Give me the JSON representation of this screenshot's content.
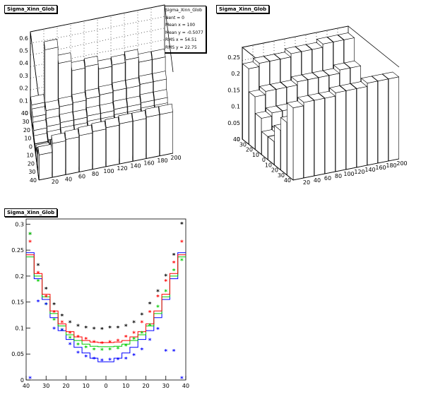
{
  "panels": {
    "top_left": {
      "title": "Sigma_Xinn_Glob"
    },
    "top_right": {
      "title": "Sigma_Xinn_Glob"
    },
    "bottom": {
      "title": "Sigma_Xinn_Glob"
    }
  },
  "stats": {
    "title": "Sigma_Xinn_Glob",
    "lines": [
      "Nent = 0",
      "Mean x =   100",
      "Mean y = -0.5077",
      "RMS x = 54.51",
      "RMS y = 22.75"
    ]
  },
  "chart_data": [
    {
      "type": "lego3d",
      "title": "Sigma_Xinn_Glob",
      "x_ticks": [
        "20",
        "40",
        "60",
        "80",
        "100",
        "120",
        "140",
        "160",
        "180",
        "200"
      ],
      "y_ticks": [
        "40",
        "30",
        "20",
        "10",
        "0",
        "10",
        "20",
        "30",
        "40"
      ],
      "z_ticks": [
        "0",
        "0.1",
        "0.2",
        "0.3",
        "0.4",
        "0.5",
        "0.6"
      ],
      "zlim": [
        0,
        0.65
      ],
      "x_bins": [
        10,
        30,
        50,
        70,
        90,
        110,
        130,
        150,
        170,
        190
      ],
      "y_bins": [
        -35,
        -25,
        -15,
        -5,
        5,
        15,
        25,
        35
      ],
      "values": [
        [
          0.2,
          0.13,
          0.08,
          0.02,
          0.02,
          0.06,
          0.1,
          0.13
        ],
        [
          0.27,
          0.17,
          0.09,
          0.03,
          0.03,
          0.07,
          0.13,
          0.55
        ],
        [
          0.28,
          0.18,
          0.1,
          0.04,
          0.04,
          0.08,
          0.14,
          0.42
        ],
        [
          0.29,
          0.19,
          0.11,
          0.04,
          0.04,
          0.08,
          0.15,
          0.34
        ],
        [
          0.3,
          0.2,
          0.11,
          0.05,
          0.05,
          0.09,
          0.16,
          0.35
        ],
        [
          0.31,
          0.21,
          0.12,
          0.05,
          0.05,
          0.09,
          0.17,
          0.31
        ],
        [
          0.32,
          0.22,
          0.12,
          0.06,
          0.06,
          0.1,
          0.18,
          0.32
        ],
        [
          0.32,
          0.22,
          0.13,
          0.06,
          0.06,
          0.1,
          0.18,
          0.34
        ],
        [
          0.33,
          0.23,
          0.13,
          0.07,
          0.07,
          0.11,
          0.19,
          0.3
        ],
        [
          0.33,
          0.23,
          0.14,
          0.07,
          0.07,
          0.11,
          0.19,
          0.3
        ]
      ]
    },
    {
      "type": "lego3d",
      "title": "Sigma_Xinn_Glob",
      "x_ticks": [
        "20",
        "40",
        "60",
        "80",
        "100",
        "120",
        "140",
        "160",
        "180",
        "200"
      ],
      "y_ticks": [
        "40",
        "30",
        "20",
        "10",
        "0",
        "10",
        "20",
        "30",
        "40"
      ],
      "z_ticks": [
        "0",
        "0.05",
        "0.1",
        "0.15",
        "0.2",
        "0.25"
      ],
      "zlim": [
        0,
        0.28
      ],
      "x_bins": [
        10,
        30,
        50,
        70,
        90,
        110,
        130,
        150,
        170,
        190
      ],
      "y_bins": [
        -35,
        -25,
        -15,
        -5,
        5,
        15,
        25,
        35
      ],
      "values": [
        [
          0.22,
          0.16,
          0.12,
          0.07,
          0.07,
          0.11,
          0.16,
          0.23
        ],
        [
          0.23,
          0.17,
          0.12,
          0.08,
          0.08,
          0.12,
          0.17,
          0.24
        ],
        [
          0.23,
          0.17,
          0.12,
          0.08,
          0.08,
          0.12,
          0.17,
          0.24
        ],
        [
          0.23,
          0.17,
          0.13,
          0.08,
          0.08,
          0.12,
          0.17,
          0.24
        ],
        [
          0.24,
          0.18,
          0.13,
          0.08,
          0.08,
          0.13,
          0.18,
          0.25
        ],
        [
          0.24,
          0.18,
          0.13,
          0.08,
          0.08,
          0.13,
          0.18,
          0.25
        ],
        [
          0.24,
          0.18,
          0.13,
          0.08,
          0.08,
          0.13,
          0.18,
          0.25
        ],
        [
          0.25,
          0.18,
          0.13,
          0.09,
          0.09,
          0.13,
          0.18,
          0.26
        ],
        [
          0.25,
          0.19,
          0.14,
          0.09,
          0.09,
          0.14,
          0.19,
          0.26
        ],
        [
          0.25,
          0.19,
          0.14,
          0.09,
          0.09,
          0.14,
          0.19,
          0.26
        ]
      ]
    },
    {
      "type": "scatter",
      "title": "Sigma_Xinn_Glob",
      "x_ticks": [
        "40",
        "30",
        "20",
        "10",
        "0",
        "10",
        "20",
        "30",
        "40"
      ],
      "x_tick_values": [
        -40,
        -30,
        -20,
        -10,
        0,
        10,
        20,
        30,
        40
      ],
      "y_ticks": [
        "0",
        "0.05",
        "0.1",
        "0.15",
        "0.2",
        "0.25",
        "0.3"
      ],
      "y_tick_values": [
        0,
        0.05,
        0.1,
        0.15,
        0.2,
        0.25,
        0.3
      ],
      "xlim": [
        -40,
        40
      ],
      "ylim": [
        0,
        0.31
      ],
      "bins_x": [
        -38,
        -34,
        -30,
        -26,
        -22,
        -18,
        -14,
        -10,
        -6,
        -2,
        2,
        6,
        10,
        14,
        18,
        22,
        26,
        30,
        34,
        38
      ],
      "step_series": [
        {
          "color": "#0000ff",
          "values": [
            0.245,
            0.195,
            0.155,
            0.12,
            0.095,
            0.078,
            0.063,
            0.052,
            0.042,
            0.035,
            0.035,
            0.042,
            0.052,
            0.063,
            0.078,
            0.095,
            0.12,
            0.155,
            0.195,
            0.245
          ]
        },
        {
          "color": "#00cc00",
          "values": [
            0.237,
            0.2,
            0.16,
            0.128,
            0.104,
            0.087,
            0.076,
            0.069,
            0.065,
            0.064,
            0.064,
            0.065,
            0.069,
            0.076,
            0.087,
            0.104,
            0.128,
            0.16,
            0.2,
            0.237
          ]
        },
        {
          "color": "#ff0000",
          "values": [
            0.241,
            0.205,
            0.165,
            0.133,
            0.108,
            0.093,
            0.083,
            0.076,
            0.073,
            0.072,
            0.072,
            0.073,
            0.076,
            0.083,
            0.093,
            0.108,
            0.133,
            0.165,
            0.205,
            0.241
          ]
        }
      ],
      "marker_series": [
        {
          "color": "#000000",
          "values": [
            0.28,
            0.22,
            0.175,
            0.145,
            0.123,
            0.11,
            0.103,
            0.1,
            0.098,
            0.097,
            0.1,
            0.1,
            0.103,
            0.11,
            0.125,
            0.146,
            0.17,
            0.2,
            0.24,
            0.3
          ]
        },
        {
          "color": "#ff0000",
          "values": [
            0.265,
            0.205,
            0.16,
            0.13,
            0.11,
            0.09,
            0.082,
            0.078,
            0.072,
            0.07,
            0.072,
            0.075,
            0.082,
            0.09,
            0.11,
            0.13,
            0.16,
            0.19,
            0.225,
            0.265
          ]
        },
        {
          "color": "#00cc00",
          "values": [
            0.28,
            0.19,
            0.145,
            0.115,
            0.095,
            0.08,
            0.067,
            0.062,
            0.058,
            0.057,
            0.058,
            0.06,
            0.065,
            0.078,
            0.09,
            0.105,
            0.14,
            0.17,
            0.21,
            0.23
          ]
        },
        {
          "color": "#0000ff",
          "values": [
            0.003,
            0.15,
            0.145,
            0.098,
            0.095,
            0.068,
            0.052,
            0.044,
            0.04,
            0.037,
            0.038,
            0.039,
            0.04,
            0.047,
            0.058,
            0.076,
            0.097,
            0.055,
            0.055,
            0.003
          ]
        }
      ]
    }
  ]
}
